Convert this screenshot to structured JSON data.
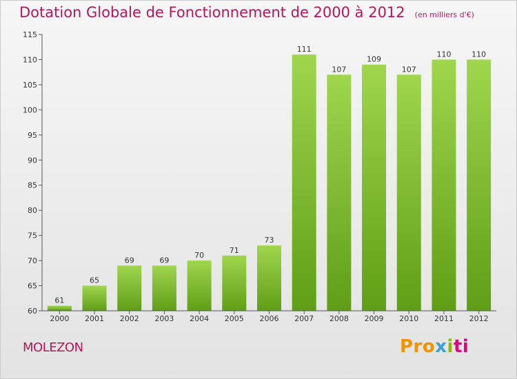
{
  "chart_data": {
    "type": "bar",
    "title": "Dotation Globale de Fonctionnement de 2000 à 2012",
    "subtitle": "(en milliers d'€)",
    "categories": [
      "2000",
      "2001",
      "2002",
      "2003",
      "2004",
      "2005",
      "2006",
      "2007",
      "2008",
      "2009",
      "2010",
      "2011",
      "2012"
    ],
    "values": [
      61,
      65,
      69,
      69,
      70,
      71,
      73,
      111,
      107,
      109,
      107,
      110,
      110
    ],
    "ylim": [
      60,
      115
    ],
    "yticks": [
      60,
      65,
      70,
      75,
      80,
      85,
      90,
      95,
      100,
      105,
      110,
      115
    ],
    "grid": false,
    "bar_color": "#7dc232"
  },
  "commune_name": "MOLEZON",
  "logo": {
    "p1": "Pro",
    "p2": "x",
    "p3": "i",
    "p4": "ti"
  }
}
